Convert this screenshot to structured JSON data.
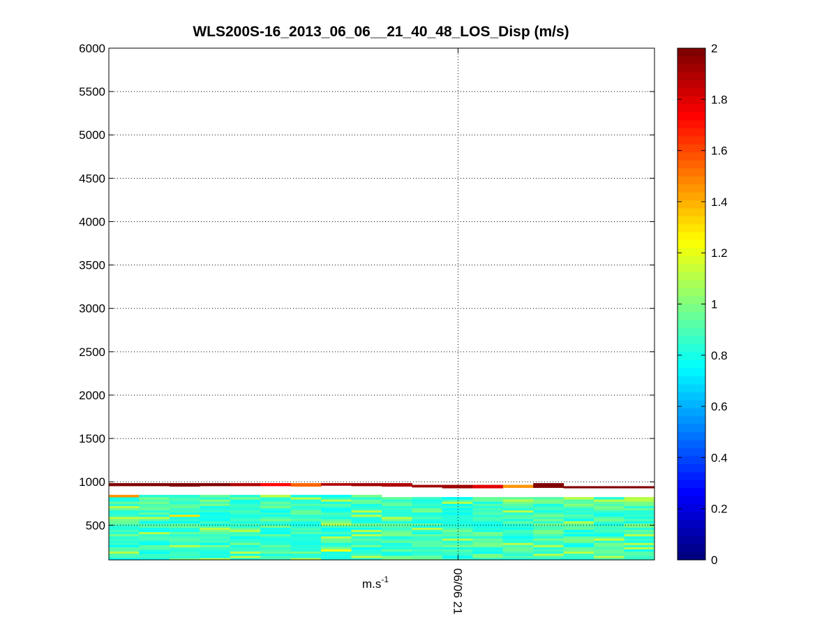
{
  "chart_data": {
    "type": "heatmap",
    "title": "WLS200S-16_2013_06_06__21_40_48_LOS_Disp (m/s)",
    "xlabel": "m.s",
    "xlabel_superscript": "-1",
    "x_tick_labels": [
      "06/06 21"
    ],
    "ylim": [
      100,
      6000
    ],
    "y_ticks": [
      500,
      1000,
      1500,
      2000,
      2500,
      3000,
      3500,
      4000,
      4500,
      5000,
      5500,
      6000
    ],
    "grid": true,
    "colorbar": {
      "colormap": "jet",
      "range": [
        0,
        2
      ],
      "ticks": [
        0,
        0.2,
        0.4,
        0.6,
        0.8,
        1,
        1.2,
        1.4,
        1.6,
        1.8,
        2
      ],
      "tick_labels": [
        "0",
        "0.2",
        "0.4",
        "0.6",
        "0.8",
        "1",
        "1.2",
        "1.4",
        "1.6",
        "1.8",
        "2"
      ]
    },
    "n_profiles": 18,
    "range_gate_m": 25,
    "data_bottom_m": 100,
    "valid_top_m": [
      855,
      855,
      855,
      855,
      855,
      855,
      855,
      845,
      845,
      835,
      835,
      835,
      835,
      835,
      835,
      835,
      835,
      835
    ],
    "top_band_m": [
      [
        950,
        985,
        2.0
      ],
      [
        950,
        985,
        2.0
      ],
      [
        945,
        985,
        2.0
      ],
      [
        950,
        985,
        2.0
      ],
      [
        950,
        985,
        1.9
      ],
      [
        950,
        985,
        1.75
      ],
      [
        945,
        985,
        1.55
      ],
      [
        955,
        985,
        1.9
      ],
      [
        950,
        985,
        1.95
      ],
      [
        945,
        985,
        1.9
      ],
      [
        935,
        965,
        1.95
      ],
      [
        925,
        965,
        1.95
      ],
      [
        925,
        965,
        1.8
      ],
      [
        930,
        965,
        1.45
      ],
      [
        930,
        985,
        2.0
      ],
      [
        925,
        950,
        2.0
      ],
      [
        925,
        950,
        2.0
      ],
      [
        925,
        950,
        2.0
      ]
    ],
    "value_range_lower_region": [
      0.75,
      1.2
    ],
    "notable_cells": [
      {
        "profile": 2,
        "height_m": 600,
        "value": 1.3
      },
      {
        "profile": 7,
        "height_m": 200,
        "value": 1.25
      },
      {
        "profile": 7,
        "height_m": 125,
        "value": 0.8
      },
      {
        "profile": 16,
        "height_m": 325,
        "value": 1.15
      },
      {
        "profile": 0,
        "height_m": 830,
        "value": 1.45
      },
      {
        "profile": 14,
        "height_m": 820,
        "value": 1.45
      }
    ]
  }
}
